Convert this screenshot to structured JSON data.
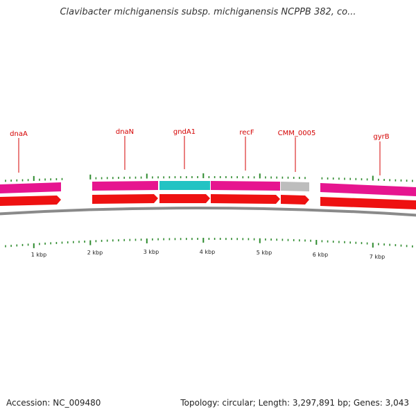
{
  "title": "Clavibacter michiganensis subsp. michiganensis NCPPB 382, co...",
  "footer": {
    "accession": "Accession: NC_009480",
    "stats": "Topology: circular; Length: 3,297,891 bp; Genes: 3,043"
  },
  "colors": {
    "gene_label": "#d40000",
    "tick": "#2e8b2e",
    "magenta_feature": "#e6158f",
    "cyan_feature": "#22c3c3",
    "gray_feature": "#bdbdbd",
    "red_arrow": "#ee1111",
    "backbone": "#8a8a8a"
  },
  "genes": [
    {
      "name": "dnaA"
    },
    {
      "name": "dnaN"
    },
    {
      "name": "gndA1"
    },
    {
      "name": "recF"
    },
    {
      "name": "CMM_0005"
    },
    {
      "name": "gyrB"
    }
  ],
  "scale_labels": [
    "1 kbp",
    "2 kbp",
    "3 kbp",
    "4 kbp",
    "5 kbp",
    "6 kbp",
    "7 kbp"
  ]
}
